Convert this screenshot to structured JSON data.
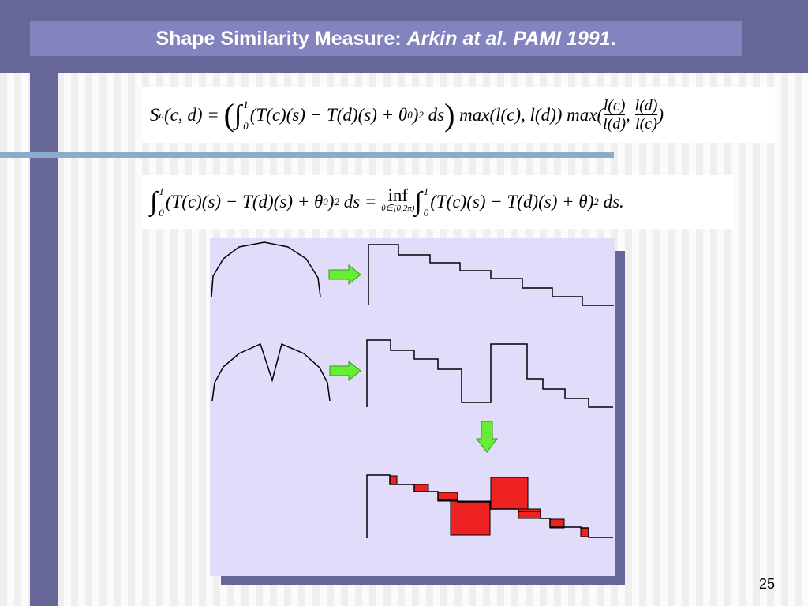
{
  "header": {
    "title": "Shape Similarity Measure: ",
    "title_italic": "Arkin at al. PAMI 1991",
    "title_end": "."
  },
  "formula_1": {
    "parts": [
      "S",
      "a",
      "(c, d) = ",
      "(",
      "∫",
      "0",
      "1",
      "(T(c)(s) − T(d)(s) + θ",
      "0",
      ")",
      "2",
      " ds",
      ")",
      " max(l(c), l(d)) max(",
      "l(c)",
      "l(d)",
      ", ",
      "l(d)",
      "l(c)",
      ")"
    ]
  },
  "formula_2": {
    "parts": [
      "∫",
      "0",
      "1",
      "(T(c)(s) − T(d)(s) + θ",
      "0",
      ")",
      "2",
      " ds = ",
      "inf",
      "θ∈[0,2π)",
      "∫",
      "0",
      "1",
      "(T(c)(s) − T(d)(s) + θ)",
      "2",
      " ds."
    ]
  },
  "page_number": "25"
}
